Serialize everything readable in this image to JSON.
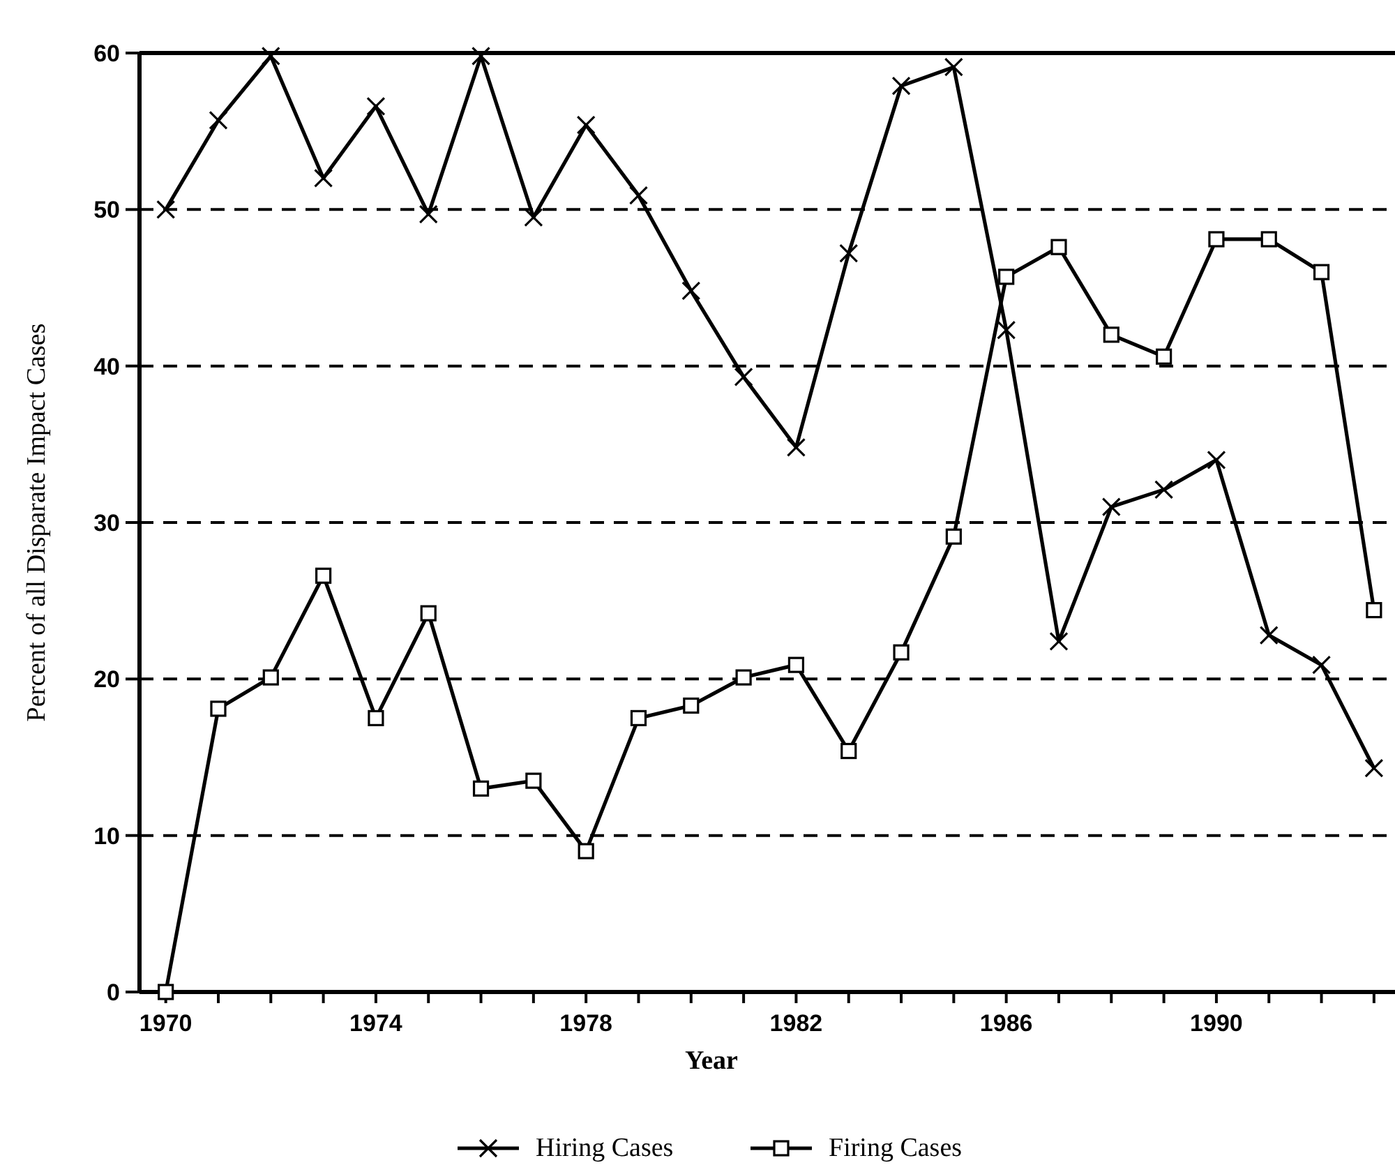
{
  "chart_data": {
    "type": "line",
    "xlabel": "Year",
    "ylabel": "Percent of all Disparate Impact Cases",
    "x": [
      1970,
      1971,
      1972,
      1973,
      1974,
      1975,
      1976,
      1977,
      1978,
      1979,
      1980,
      1981,
      1982,
      1983,
      1984,
      1985,
      1986,
      1987,
      1988,
      1989,
      1990,
      1991,
      1992,
      1993
    ],
    "series": [
      {
        "name": "Hiring Cases",
        "color": "#000000",
        "marker": "cross",
        "values": [
          50,
          55.7,
          59.8,
          52,
          56.6,
          49.7,
          59.8,
          49.5,
          55.4,
          50.9,
          44.8,
          39.3,
          34.8,
          47.2,
          57.9,
          59.1,
          42.3,
          22.4,
          31,
          32.1,
          34,
          22.8,
          20.9,
          14.3
        ]
      },
      {
        "name": "Firing Cases",
        "color": "#000000",
        "marker": "square",
        "values": [
          0,
          18.1,
          20.1,
          26.6,
          17.5,
          24.2,
          13,
          13.5,
          9,
          17.5,
          18.3,
          20.1,
          20.9,
          15.4,
          21.7,
          29.1,
          45.7,
          47.6,
          42,
          40.6,
          48.1,
          48.1,
          46,
          24.4
        ]
      }
    ],
    "xlim": [
      1969.5,
      1993.4
    ],
    "xticks": [
      1970,
      {
        "value": 1971,
        "label": null
      },
      {
        "value": 1972,
        "label": null
      },
      {
        "value": 1973,
        "label": null
      },
      1974,
      {
        "value": 1975,
        "label": null
      },
      {
        "value": 1976,
        "label": null
      },
      {
        "value": 1977,
        "label": null
      },
      1978,
      {
        "value": 1979,
        "label": null
      },
      {
        "value": 1980,
        "label": null
      },
      {
        "value": 1981,
        "label": null
      },
      1982,
      {
        "value": 1983,
        "label": null
      },
      {
        "value": 1984,
        "label": null
      },
      {
        "value": 1985,
        "label": null
      },
      1986,
      {
        "value": 1987,
        "label": null
      },
      {
        "value": 1988,
        "label": null
      },
      {
        "value": 1989,
        "label": null
      },
      1990,
      {
        "value": 1991,
        "label": null
      },
      {
        "value": 1992,
        "label": null
      },
      {
        "value": 1993,
        "label": null
      }
    ],
    "ylim": [
      0,
      60
    ],
    "yticks": [
      0,
      10,
      20,
      30,
      40,
      50,
      60
    ],
    "grid": "y",
    "legend": "bottom",
    "line_style": "solid"
  }
}
